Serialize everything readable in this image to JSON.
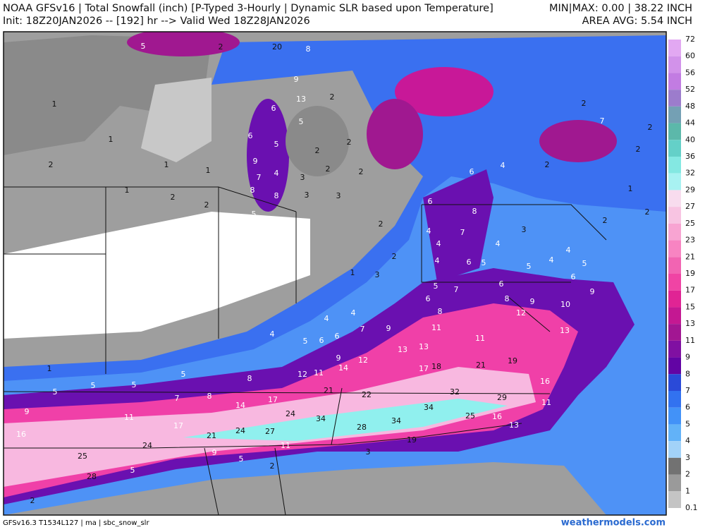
{
  "header": {
    "title": "NOAA GFSv16 | Total Snowfall (inch) [P-Typed 3-Hourly | Dynamic SLR based upon Temperature]",
    "init": "Init: 18Z20JAN2026 -- [192] hr --> Valid Wed 18Z28JAN2026",
    "minmax": "MIN|MAX: 0.00 | 38.22 INCH",
    "area_avg": "AREA AVG: 5.54 INCH"
  },
  "legend": {
    "levels": [
      72,
      60,
      56,
      52,
      48,
      44,
      40,
      36,
      32,
      29,
      27,
      25,
      23,
      21,
      19,
      17,
      15,
      13,
      11,
      9,
      8,
      7,
      6,
      5,
      4,
      3,
      2,
      1,
      0.1
    ],
    "colors": [
      "#e2a8f2",
      "#d292ea",
      "#c27ce2",
      "#9c7ccc",
      "#74a0b4",
      "#5cb8aa",
      "#64d0c8",
      "#84e8e2",
      "#a8f2f2",
      "#f8dcee",
      "#f8c4e2",
      "#f8a4d2",
      "#f884c2",
      "#f264b2",
      "#f044a4",
      "#e02494",
      "#c41892",
      "#a21692",
      "#8010a2",
      "#6204a4",
      "#2a4ad8",
      "#3272f0",
      "#4292f8",
      "#62b2f8",
      "#a2d2f8",
      "#727272",
      "#9a9a9a",
      "#c4c4c4"
    ]
  },
  "map_labels": [
    5,
    2,
    20,
    8,
    1,
    1,
    2,
    1,
    1,
    1,
    2,
    2,
    9,
    6,
    13,
    5,
    2,
    6,
    5,
    2,
    2,
    9,
    7,
    4,
    3,
    2,
    2,
    8,
    8,
    3,
    3,
    5,
    2,
    2,
    1,
    3,
    7,
    2,
    2,
    2,
    4,
    2,
    6,
    6,
    8,
    1,
    2,
    2,
    4,
    7,
    4,
    3,
    4,
    4,
    6,
    5,
    5,
    4,
    4,
    5,
    6,
    9,
    5,
    7,
    6,
    8,
    12,
    9,
    10,
    6,
    8,
    4,
    4,
    4,
    5,
    6,
    6,
    7,
    9,
    11,
    11,
    13,
    13,
    13,
    9,
    12,
    14,
    11,
    12,
    17,
    18,
    21,
    19,
    16,
    8,
    5,
    1,
    5,
    5,
    5,
    8,
    7,
    17,
    14,
    21,
    22,
    32,
    29,
    11,
    9,
    11,
    34,
    24,
    34,
    34,
    25,
    16,
    13,
    17,
    21,
    24,
    27,
    28,
    16,
    24,
    11,
    19,
    3,
    9,
    5,
    25,
    5,
    2,
    28,
    2
  ],
  "footer": {
    "model": "GFSv16.3 T1534L127 | ma | sbc_snow_slr",
    "site": "weathermodels.com"
  }
}
